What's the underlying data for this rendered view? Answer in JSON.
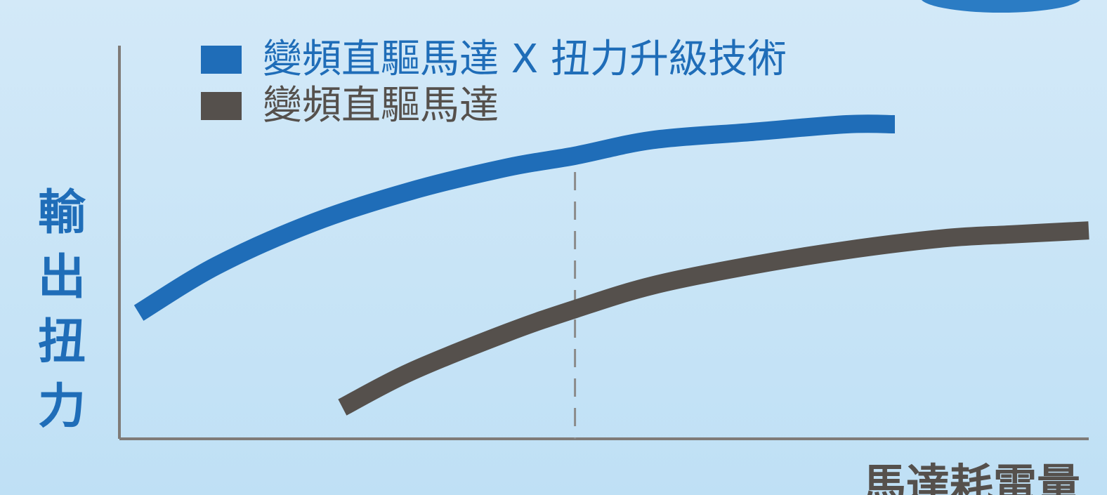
{
  "chart_data": {
    "type": "line",
    "title": "",
    "xlabel": "馬達耗電量",
    "ylabel": "輸出扭力",
    "xlim": [
      0,
      100
    ],
    "ylim": [
      0,
      100
    ],
    "grid": false,
    "legend_position": "top-left",
    "reference_line": {
      "x": 47,
      "style": "dashed"
    },
    "series": [
      {
        "name": "變頻直驅馬達 X 扭力升級技術",
        "color": "#1f6db8",
        "x": [
          2,
          10,
          20,
          30,
          40,
          47,
          55,
          65,
          75,
          80
        ],
        "y": [
          32,
          44,
          55,
          63,
          69,
          72,
          76,
          78,
          80,
          80
        ]
      },
      {
        "name": "變頻直驅馬達",
        "color": "#55504c",
        "x": [
          23,
          30,
          40,
          47,
          55,
          65,
          75,
          85,
          92,
          100
        ],
        "y": [
          8,
          17,
          27,
          33,
          39,
          44,
          48,
          51,
          52,
          53
        ]
      }
    ]
  },
  "colors": {
    "background": "#cfe6f6",
    "accent_blue": "#1f6db8",
    "dark_gray": "#55504c",
    "axis": "#7f7b78",
    "reference_line": "#8b8b8b"
  }
}
